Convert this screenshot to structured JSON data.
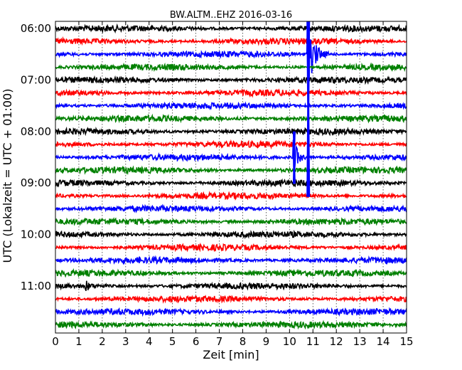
{
  "chart_data": {
    "type": "line",
    "title": "BW.ALTM..EHZ 2016-03-16",
    "xlabel": "Zeit  [min]",
    "ylabel": "UTC (Lokalzeit = UTC + 01:00)",
    "xlim": [
      0,
      15
    ],
    "x_ticks": [
      "0",
      "1",
      "2",
      "3",
      "4",
      "5",
      "6",
      "7",
      "8",
      "9",
      "10",
      "11",
      "12",
      "13",
      "14",
      "15"
    ],
    "y_ticks": [
      "06:00",
      "07:00",
      "08:00",
      "09:00",
      "10:00",
      "11:00"
    ],
    "grid": "vertical dotted",
    "trace_count": 24,
    "trace_interval_min": 15,
    "trace_colors": [
      "#000000",
      "#ff0000",
      "#0000ff",
      "#008000"
    ],
    "events": [
      {
        "trace_index": 2,
        "time_min": 10.8,
        "note": "large amplitude, clipped"
      },
      {
        "trace_index": 10,
        "time_min": 10.2,
        "note": "medium amplitude"
      },
      {
        "trace_index": 20,
        "time_min": 1.3,
        "note": "small amplitude"
      }
    ]
  }
}
